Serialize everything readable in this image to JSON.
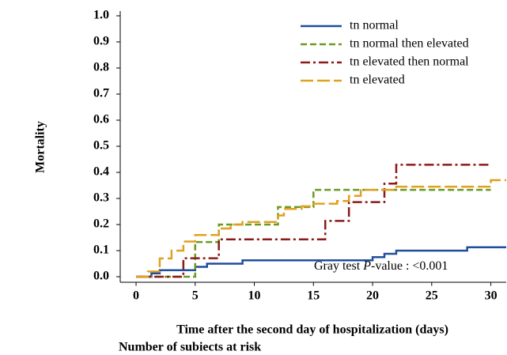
{
  "chart_data": {
    "type": "step",
    "y_label": "Mortality",
    "x_label": "Time after the second day of hospitalization (days)",
    "footer": "Number of subiects at risk",
    "annotation": [
      "Gray test ",
      "P",
      "-value : <0.001"
    ],
    "xlim": [
      -1.34,
      31.3
    ],
    "xticks": [
      0,
      5,
      10,
      15,
      20,
      25,
      30
    ],
    "ylim": [
      -0.02,
      1.02
    ],
    "yticks": [
      {
        "value": 0,
        "label": "0.0"
      },
      0.1,
      0.2,
      0.3,
      0.4,
      0.5,
      0.6,
      0.7,
      0.8,
      0.9,
      {
        "value": 1,
        "label": "1.0"
      }
    ],
    "series": [
      {
        "name": "tn normal",
        "color": "#1f4e9c",
        "dash": "solid",
        "x": [
          0,
          1.3,
          2,
          5,
          6,
          9,
          20,
          21,
          22,
          28,
          31.3
        ],
        "values": [
          0,
          0.013,
          0.025,
          0.038,
          0.05,
          0.063,
          0.075,
          0.088,
          0.1,
          0.113,
          0.113
        ]
      },
      {
        "name": "tn normal then elevated",
        "color": "#6b9a1f",
        "dash": "dashed",
        "x": [
          0,
          5,
          7,
          12,
          15,
          30
        ],
        "values": [
          0,
          0.133,
          0.2,
          0.267,
          0.333,
          0.333
        ]
      },
      {
        "name": "tn elevated then normal",
        "color": "#8b1a1a",
        "dash": "dashdot",
        "x": [
          0,
          4,
          7,
          16,
          18,
          21,
          22,
          30
        ],
        "values": [
          0,
          0.071,
          0.143,
          0.214,
          0.286,
          0.357,
          0.429,
          0.429
        ]
      },
      {
        "name": "tn elevated",
        "color": "#e0a020",
        "dash": "longdash",
        "x": [
          0,
          1,
          2,
          3,
          4,
          5,
          7,
          8,
          9,
          12,
          12.5,
          14,
          15,
          17,
          18,
          19,
          22,
          30,
          31.3
        ],
        "values": [
          0,
          0.02,
          0.07,
          0.1,
          0.135,
          0.16,
          0.185,
          0.2,
          0.21,
          0.235,
          0.26,
          0.27,
          0.28,
          0.29,
          0.31,
          0.333,
          0.345,
          0.37,
          0.37
        ]
      }
    ]
  }
}
